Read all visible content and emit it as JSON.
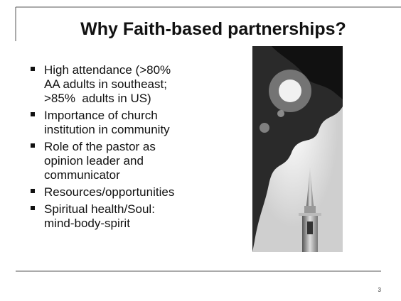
{
  "slide": {
    "title": "Why Faith-based partnerships?",
    "bullets": [
      [
        "High attendance (>80%",
        "AA adults in southeast;",
        ">85%  adults in US)"
      ],
      [
        "Importance of church",
        "institution in community"
      ],
      [
        "Role of the pastor as",
        "opinion leader and",
        "communicator"
      ],
      [
        "Resources/opportunities"
      ],
      [
        "Spiritual health/Soul:",
        "mind-body-spirit"
      ]
    ],
    "page_number": "3"
  }
}
